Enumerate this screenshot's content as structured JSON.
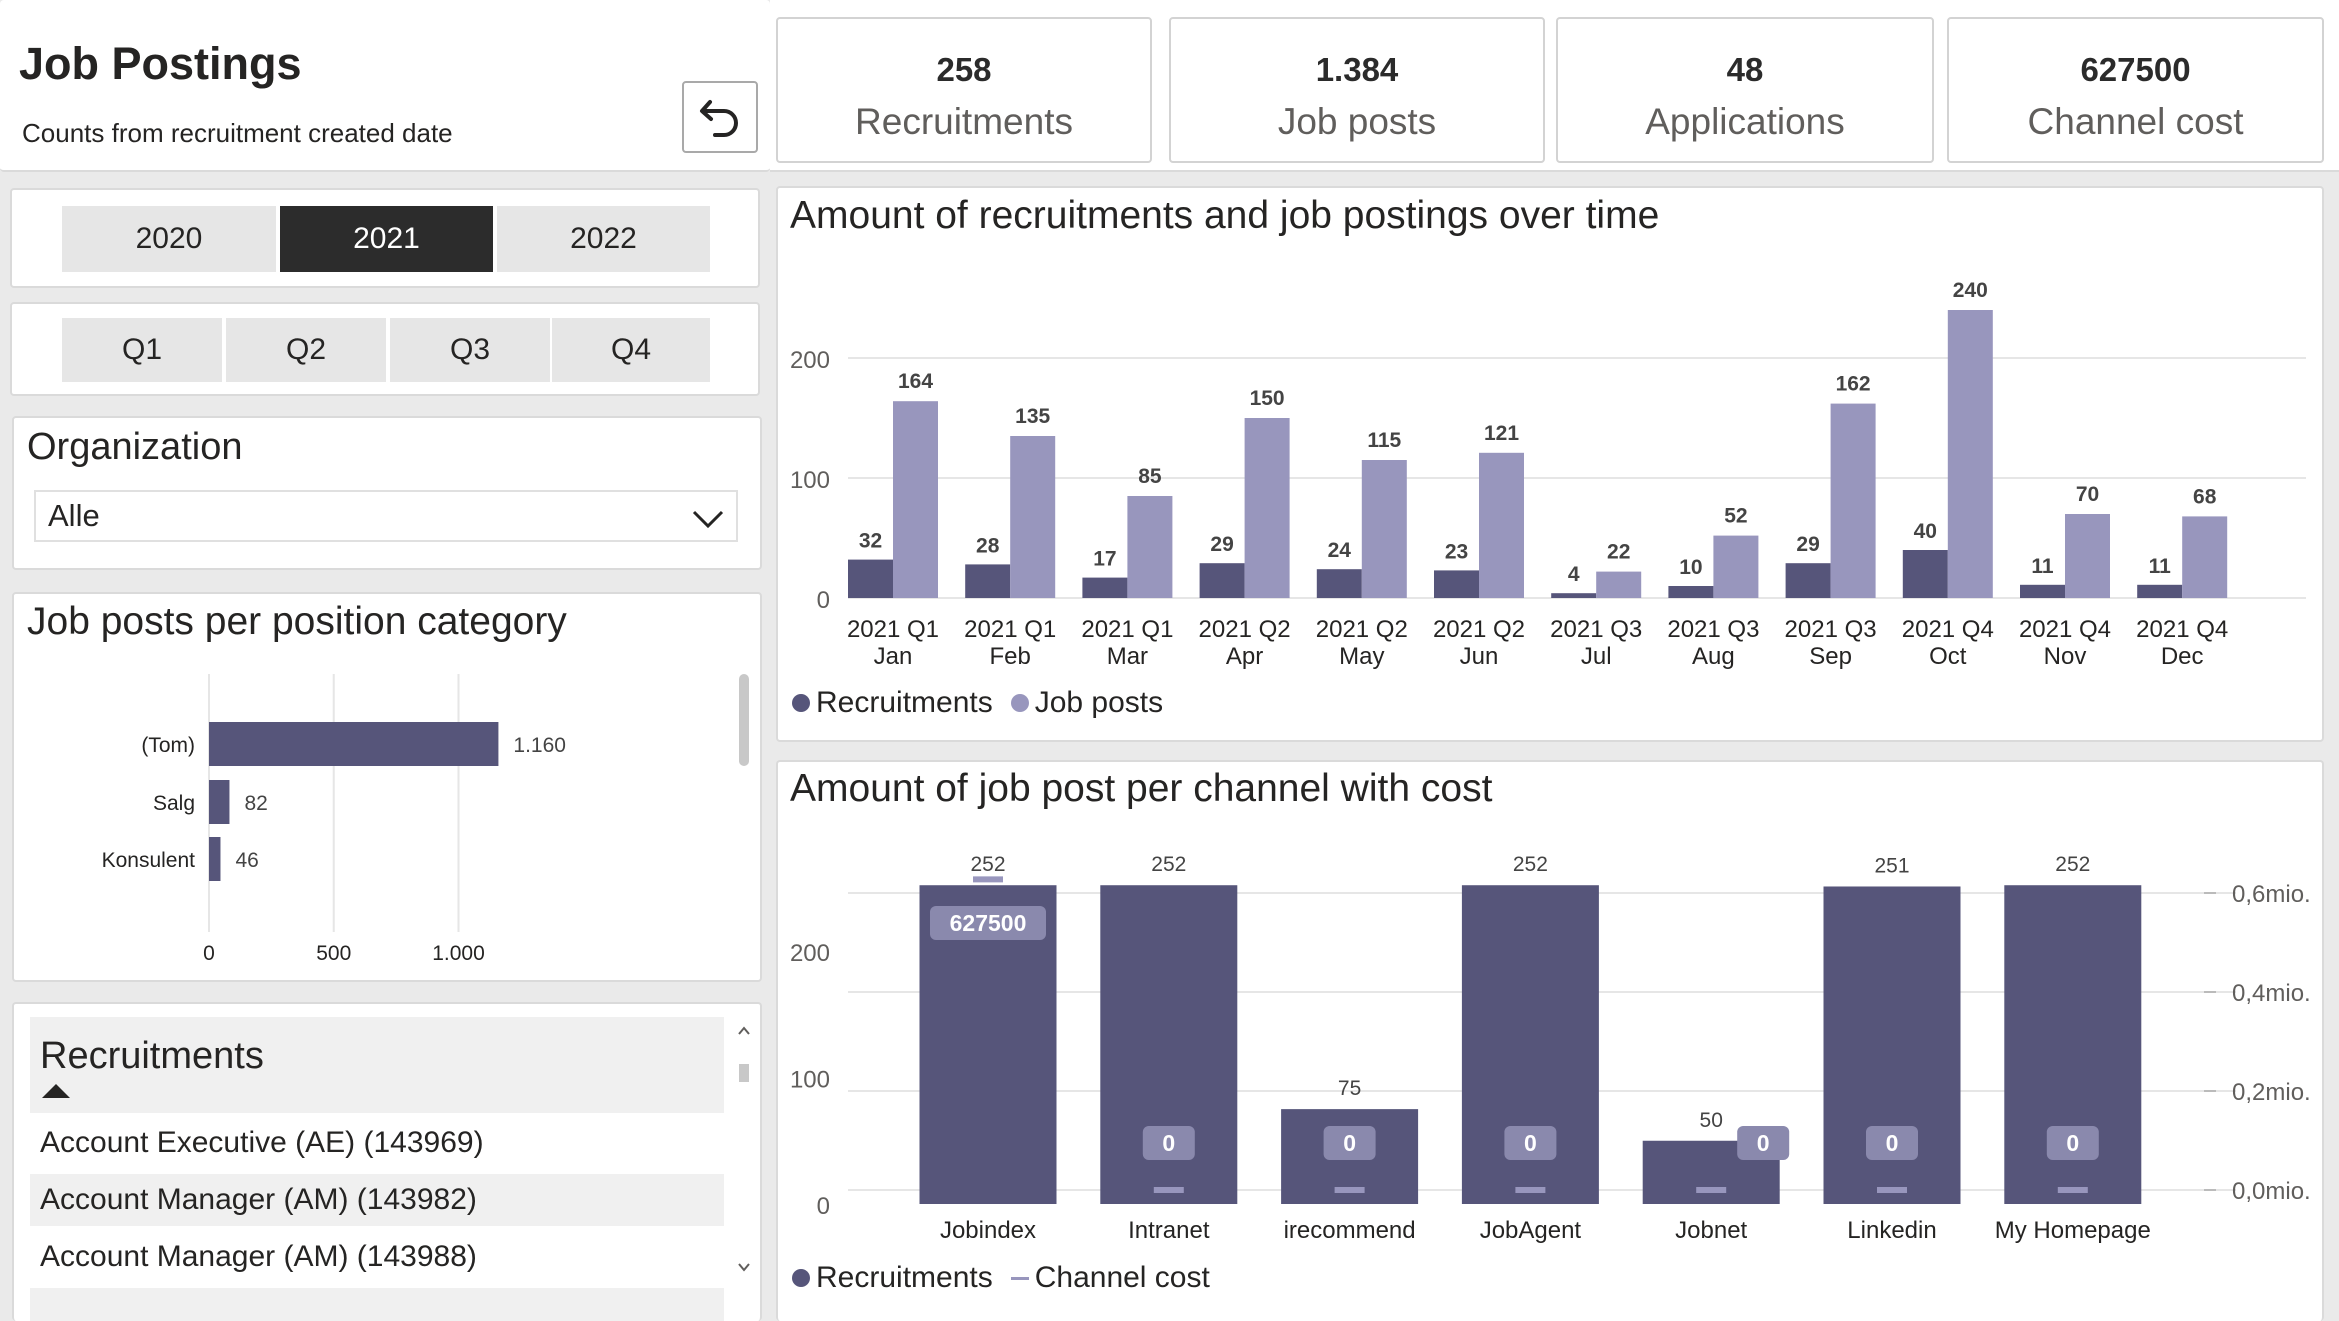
{
  "header": {
    "title": "Job Postings",
    "subtitle": "Counts from recruitment created date",
    "reset_icon": "undo-icon"
  },
  "kpis": [
    {
      "value": "258",
      "label": "Recruitments"
    },
    {
      "value": "1.384",
      "label": "Job posts"
    },
    {
      "value": "48",
      "label": "Applications"
    },
    {
      "value": "627500",
      "label": "Channel cost"
    }
  ],
  "year_slicer": {
    "options": [
      "2020",
      "2021",
      "2022"
    ],
    "selected": "2021"
  },
  "quarter_slicer": {
    "options": [
      "Q1",
      "Q2",
      "Q3",
      "Q4"
    ]
  },
  "organization": {
    "title": "Organization",
    "selected": "Alle",
    "icon": "chevron-down-icon"
  },
  "position_chart": {
    "title": "Job posts per position category",
    "x_ticks": [
      "0",
      "500",
      "1.000"
    ],
    "value_labels": [
      "1.160",
      "82",
      "46"
    ]
  },
  "recruitments_table": {
    "header": "Recruitments",
    "sort_icon": "sort-ascending-icon",
    "rows": [
      "Account Executive (AE) (143969)",
      "Account Manager (AM) (143982)",
      "Account Manager (AM) (143988)"
    ]
  },
  "time_chart": {
    "title": "Amount of recruitments and job postings over time",
    "y_ticks": [
      "0",
      "100",
      "200"
    ],
    "recruitment_labels": [
      "32",
      "28",
      "17",
      "29",
      "24",
      "23",
      "4",
      "10",
      "29",
      "40",
      "11",
      "11"
    ],
    "jobpost_labels": [
      "164",
      "135",
      "85",
      "150",
      "115",
      "121",
      "22",
      "52",
      "162",
      "240",
      "70",
      "68"
    ],
    "legend": [
      "Recruitments",
      "Job posts"
    ]
  },
  "channel_chart": {
    "title": "Amount of job post per channel with cost",
    "y_ticks": [
      "0",
      "100",
      "200"
    ],
    "y2_ticks": [
      "0,0mio.",
      "0,2mio.",
      "0,4mio.",
      "0,6mio."
    ],
    "value_labels": [
      "252",
      "252",
      "75",
      "252",
      "50",
      "251",
      "252"
    ],
    "cost_labels": [
      "627500",
      "0",
      "0",
      "0",
      "0",
      "0",
      "0"
    ],
    "legend": [
      "Recruitments",
      "Channel cost"
    ]
  },
  "colors": {
    "recruitments": "#56557a",
    "job_posts": "#9896bd",
    "selected_slicer": "#2c2c2c"
  },
  "chart_data": [
    {
      "type": "bar",
      "title": "Amount of recruitments and job postings over time",
      "categories": [
        "2021 Q1 Jan",
        "2021 Q1 Feb",
        "2021 Q1 Mar",
        "2021 Q2 Apr",
        "2021 Q2 May",
        "2021 Q2 Jun",
        "2021 Q3 Jul",
        "2021 Q3 Aug",
        "2021 Q3 Sep",
        "2021 Q4 Oct",
        "2021 Q4 Nov",
        "2021 Q4 Dec"
      ],
      "category_lines": [
        [
          "2021 Q1",
          "Jan"
        ],
        [
          "2021 Q1",
          "Feb"
        ],
        [
          "2021 Q1",
          "Mar"
        ],
        [
          "2021 Q2",
          "Apr"
        ],
        [
          "2021 Q2",
          "May"
        ],
        [
          "2021 Q2",
          "Jun"
        ],
        [
          "2021 Q3",
          "Jul"
        ],
        [
          "2021 Q3",
          "Aug"
        ],
        [
          "2021 Q3",
          "Sep"
        ],
        [
          "2021 Q4",
          "Oct"
        ],
        [
          "2021 Q4",
          "Nov"
        ],
        [
          "2021 Q4",
          "Dec"
        ]
      ],
      "series": [
        {
          "name": "Recruitments",
          "values": [
            32,
            28,
            17,
            29,
            24,
            23,
            4,
            10,
            29,
            40,
            11,
            11
          ]
        },
        {
          "name": "Job posts",
          "values": [
            164,
            135,
            85,
            150,
            115,
            121,
            22,
            52,
            162,
            240,
            70,
            68
          ]
        }
      ],
      "ylim": [
        0,
        260
      ],
      "grid": true,
      "legend": "bottom-left"
    },
    {
      "type": "bar",
      "title": "Job posts per position category",
      "orientation": "horizontal",
      "categories": [
        "(Tom)",
        "Salg",
        "Konsulent"
      ],
      "values": [
        1160,
        82,
        46
      ],
      "xlim": [
        0,
        1400
      ],
      "grid": true
    },
    {
      "type": "bar",
      "title": "Amount of job post per channel with cost",
      "categories": [
        "Jobindex",
        "Intranet",
        "irecommend",
        "JobAgent",
        "Jobnet",
        "Linkedin",
        "My Homepage"
      ],
      "series": [
        {
          "name": "Recruitments",
          "values": [
            252,
            252,
            75,
            252,
            50,
            251,
            252
          ]
        },
        {
          "name": "Channel cost",
          "values": [
            627500,
            0,
            0,
            0,
            0,
            0,
            0
          ],
          "axis": "secondary"
        }
      ],
      "ylim": [
        0,
        260
      ],
      "y2lim": [
        0,
        700000
      ],
      "grid": true,
      "legend": "bottom-left"
    }
  ]
}
